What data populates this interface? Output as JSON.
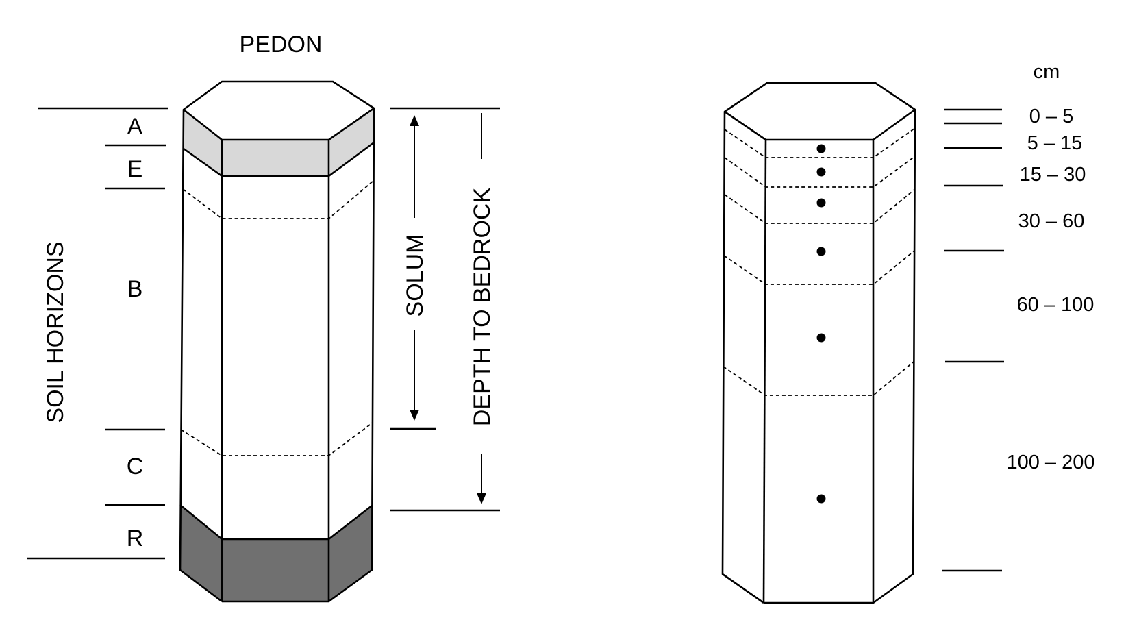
{
  "pedon": {
    "title": "PEDON",
    "side_label": "SOIL HORIZONS",
    "horizons": [
      {
        "code": "A",
        "fill": "#d8d8d8"
      },
      {
        "code": "E",
        "fill": "#ffffff"
      },
      {
        "code": "B",
        "fill": "#ffffff"
      },
      {
        "code": "C",
        "fill": "#ffffff"
      },
      {
        "code": "R",
        "fill": "#707070"
      }
    ],
    "solum_label": "SOLUM",
    "bedrock_label": "DEPTH TO BEDROCK"
  },
  "sampling": {
    "unit": "cm",
    "depth_intervals": [
      "0 – 5",
      "5 – 15",
      "15 – 30",
      "30 – 60",
      "60 – 100",
      "100 – 200"
    ]
  }
}
